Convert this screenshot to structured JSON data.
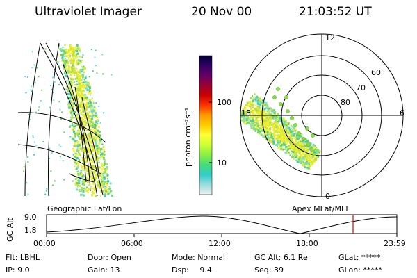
{
  "header": {
    "instrument": "Ultraviolet Imager",
    "date": "20 Nov 00",
    "time": "21:03:52 UT"
  },
  "colorbar": {
    "unit_label": "photon cm⁻²s⁻¹",
    "ticks": [
      "100",
      "10"
    ],
    "colors": [
      "#000033",
      "#330066",
      "#660066",
      "#990033",
      "#cc0000",
      "#ff3300",
      "#ff9900",
      "#ffcc00",
      "#ffff33",
      "#ccff33",
      "#88ee44",
      "#44dd77",
      "#33cccc",
      "#99dddd",
      "#eeeeee"
    ]
  },
  "panels": {
    "left_label": "Geographic Lat/Lon",
    "right_label": "Apex MLat/MLT",
    "polar_labels": {
      "mlt_12": "12",
      "mlt_18": "18",
      "mlt_6": "6",
      "mlt_0": "0",
      "lat_60": "60",
      "lat_70": "70",
      "lat_80": "80"
    }
  },
  "altitude_plot": {
    "ylabel": "GC Alt",
    "yticks": [
      "9.0",
      "1.8"
    ],
    "xticks": [
      "00:00",
      "06:00",
      "12:00",
      "18:00",
      "23:59"
    ],
    "current_time_marker_color": "#dd0000"
  },
  "info": {
    "row1": [
      {
        "label": "Flt:",
        "value": "LBHL"
      },
      {
        "label": "Door:",
        "value": "Open"
      },
      {
        "label": "Mode:",
        "value": "Normal"
      },
      {
        "label": "GC Alt:",
        "value": "6.1 Re"
      },
      {
        "label": "GLat:",
        "value": "*****"
      }
    ],
    "row2": [
      {
        "label": "IP:",
        "value": "9.0"
      },
      {
        "label": "Gain:",
        "value": "13"
      },
      {
        "label": "Dsp:",
        "value": "9.4"
      },
      {
        "label": "Seq:",
        "value": "39"
      },
      {
        "label": "GLon:",
        "value": "*****"
      }
    ]
  }
}
